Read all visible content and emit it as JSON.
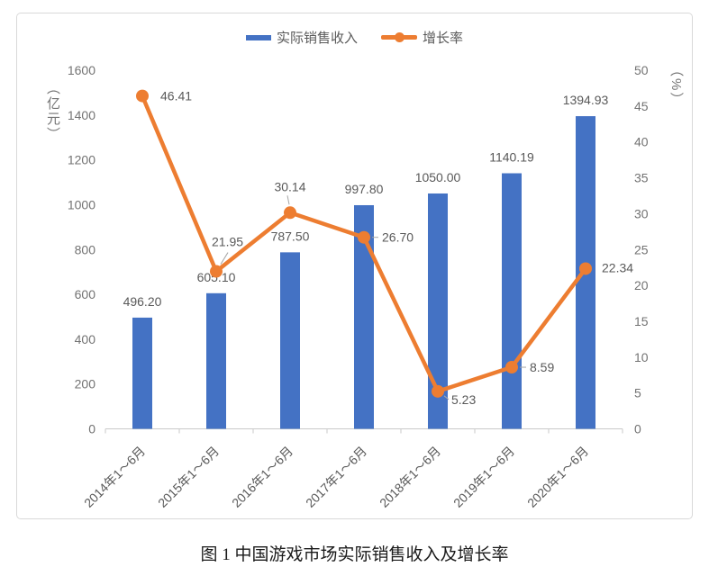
{
  "chart_data": {
    "type": "bar+line",
    "title": "图 1 中国游戏市场实际销售收入及增长率",
    "categories": [
      "2014年1～6月",
      "2015年1～6月",
      "2016年1～6月",
      "2017年1～6月",
      "2018年1～6月",
      "2019年1～6月",
      "2020年1～6月"
    ],
    "series": [
      {
        "name": "实际销售收入",
        "type": "bar",
        "axis": "left",
        "unit": "亿元",
        "color": "#4472C4",
        "values": [
          496.2,
          605.1,
          787.5,
          997.8,
          1050.0,
          1140.19,
          1394.93
        ]
      },
      {
        "name": "增长率",
        "type": "line",
        "axis": "right",
        "unit": "%",
        "color": "#ED7D31",
        "values": [
          46.41,
          21.95,
          30.14,
          26.7,
          5.23,
          8.59,
          22.34
        ]
      }
    ],
    "left_axis": {
      "title": "（亿元）",
      "min": 0,
      "max": 1600,
      "step": 200,
      "ticks": [
        0,
        200,
        400,
        600,
        800,
        1000,
        1200,
        1400,
        1600
      ]
    },
    "right_axis": {
      "title": "（%）",
      "min": 0,
      "max": 50,
      "step": 5,
      "ticks": [
        0,
        5,
        10,
        15,
        20,
        25,
        30,
        35,
        40,
        45,
        50
      ]
    },
    "legend_position": "top",
    "grid": false,
    "value_label_decimals": 2,
    "axis_line_color": "#C9C9C9",
    "leader_line_color": "#A6A6A6",
    "label_color": "#595959",
    "tick_color": "#737373"
  }
}
